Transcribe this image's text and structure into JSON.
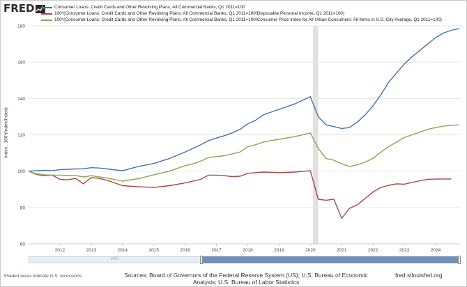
{
  "logo": {
    "text": "FRED",
    "mark": "fred-chart-line-mark"
  },
  "colors": {
    "series1": "#4572a7",
    "series2": "#aa4643",
    "series3": "#89a54e",
    "recession": "#e1e1e1",
    "grid": "#e6e6e6"
  },
  "footer": {
    "note": "Shaded areas indicate U.S. recessions.",
    "sources": "Sources: Board of Governors of the Federal Reserve System (US); U.S. Bureau of Economic Analysis; U.S. Bureau of Labor Statistics",
    "url": "fred.stlouisfed.org"
  },
  "navigator": {
    "year_label": "2005",
    "window_start_fraction": 0.4,
    "window_end_fraction": 1.0
  },
  "chart_data": {
    "type": "line",
    "ylabel": "Index , 100*(Index/Index)",
    "ylim": [
      60,
      180
    ],
    "yticks": [
      60,
      80,
      100,
      120,
      140,
      160,
      180
    ],
    "xlim": [
      2011.0,
      2024.8
    ],
    "xticks": [
      "2012",
      "2013",
      "2014",
      "2015",
      "2016",
      "2017",
      "2018",
      "2019",
      "2020",
      "2021",
      "2022",
      "2023",
      "2024"
    ],
    "grid": "horizontal",
    "recessions": [
      [
        2020.08,
        2020.25
      ]
    ],
    "series": [
      {
        "name": "Consumer Loans: Credit Cards and Other Revolving Plans, All Commercial Banks, Q1 2011=100",
        "x": [
          2011.0,
          2011.5,
          2011.75,
          2012.0,
          2012.5,
          2012.75,
          2013.0,
          2013.25,
          2013.5,
          2014.0,
          2014.5,
          2015.0,
          2015.5,
          2016.0,
          2016.5,
          2016.75,
          2017.0,
          2017.25,
          2017.5,
          2017.75,
          2018.0,
          2018.25,
          2018.5,
          2018.75,
          2019.0,
          2019.5,
          2020.0,
          2020.25,
          2020.5,
          2021.0,
          2021.25,
          2021.5,
          2021.75,
          2022.0,
          2022.25,
          2022.5,
          2022.75,
          2023.0,
          2023.25,
          2023.5,
          2023.75,
          2024.0,
          2024.25,
          2024.5,
          2024.75
        ],
        "y": [
          100,
          100.5,
          100.2,
          100.8,
          101.2,
          101.3,
          101.9,
          101.7,
          101.2,
          100.2,
          102.5,
          104.2,
          107.0,
          110.5,
          114.5,
          116.8,
          118.2,
          119.5,
          121.0,
          123.0,
          126.0,
          128.0,
          131.0,
          132.5,
          134.0,
          137.0,
          141.0,
          130.0,
          125.5,
          123.5,
          124.0,
          127.0,
          131.0,
          136.0,
          142.0,
          149.0,
          154.0,
          159.0,
          163.0,
          166.5,
          170.0,
          173.5,
          176.0,
          177.5,
          178.5
        ]
      },
      {
        "name": "100*(Consumer Loans: Credit Cards and Other Revolving Plans, All Commercial Banks, Q1 2011=100/Disposable Personal Income, Q1 2011=100)",
        "x": [
          2011.0,
          2011.25,
          2011.5,
          2011.75,
          2012.0,
          2012.25,
          2012.5,
          2012.75,
          2013.0,
          2013.25,
          2013.5,
          2013.75,
          2014.0,
          2014.5,
          2015.0,
          2015.5,
          2016.0,
          2016.5,
          2016.75,
          2017.0,
          2017.25,
          2017.5,
          2017.75,
          2018.0,
          2018.5,
          2019.0,
          2019.5,
          2020.0,
          2020.25,
          2020.5,
          2020.75,
          2021.0,
          2021.25,
          2021.5,
          2021.75,
          2022.0,
          2022.25,
          2022.5,
          2022.75,
          2023.0,
          2023.25,
          2023.5,
          2023.75,
          2024.0,
          2024.25,
          2024.5
        ],
        "y": [
          100,
          98.2,
          97.5,
          97.8,
          95.5,
          95.2,
          96.0,
          93.0,
          96.5,
          96.0,
          95.0,
          93.5,
          92.0,
          91.4,
          91.0,
          92.0,
          93.5,
          95.5,
          97.8,
          97.8,
          97.5,
          97.0,
          97.2,
          98.8,
          99.5,
          99.2,
          99.5,
          100.2,
          84.5,
          84.0,
          84.5,
          74.0,
          79.5,
          81.5,
          85.0,
          88.5,
          91.0,
          92.2,
          93.0,
          92.8,
          93.8,
          94.7,
          95.5,
          95.6,
          95.7,
          95.7
        ]
      },
      {
        "name": "100*(Consumer Loans: Credit Cards and Other Revolving Plans, All Commercial Banks, Q1 2011=100/Consumer Price Index for All Urban Consumers: All Items in U.S. City Average, Q1 2011=100)",
        "x": [
          2011.0,
          2011.25,
          2011.5,
          2011.75,
          2012.0,
          2012.5,
          2012.75,
          2013.0,
          2013.5,
          2014.0,
          2014.5,
          2015.0,
          2015.5,
          2016.0,
          2016.25,
          2016.5,
          2016.75,
          2017.0,
          2017.25,
          2017.5,
          2017.75,
          2018.0,
          2018.25,
          2018.5,
          2018.75,
          2019.0,
          2019.5,
          2020.0,
          2020.25,
          2020.5,
          2020.75,
          2021.0,
          2021.25,
          2021.5,
          2021.75,
          2022.0,
          2022.25,
          2022.5,
          2022.75,
          2023.0,
          2023.25,
          2023.5,
          2023.75,
          2024.0,
          2024.25,
          2024.5,
          2024.75
        ],
        "y": [
          100,
          98.5,
          98.0,
          97.8,
          97.8,
          97.6,
          96.8,
          97.5,
          96.2,
          94.5,
          95.8,
          98.0,
          100.0,
          103.0,
          104.0,
          105.5,
          107.5,
          108.0,
          108.5,
          109.5,
          110.5,
          113.5,
          114.5,
          116.0,
          116.8,
          117.5,
          119.0,
          121.0,
          112.5,
          107.0,
          106.0,
          104.0,
          102.5,
          103.5,
          105.0,
          107.0,
          110.5,
          113.5,
          116.0,
          118.5,
          120.0,
          121.5,
          123.0,
          124.0,
          124.8,
          125.2,
          125.5
        ]
      }
    ]
  }
}
